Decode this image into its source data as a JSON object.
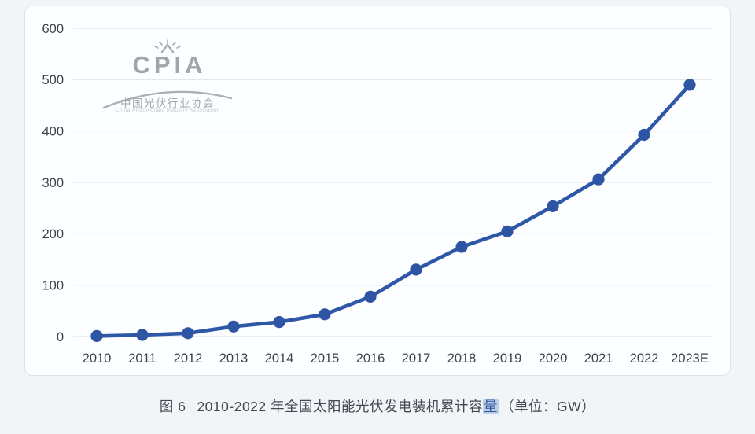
{
  "page": {
    "background": "#f1f5f7",
    "card_background": "#fdfeff"
  },
  "logo": {
    "acronym": "CPIA",
    "name_cn": "中国光伏行业协会",
    "name_en": "China Photovoltaic Industry Association",
    "color": "#9b9fa4"
  },
  "caption": {
    "figure_label": "图 6",
    "text_main": "2010-2022 年全国太阳能光伏发电装机累计容",
    "text_highlight": "量",
    "text_suffix": "（单位：GW）"
  },
  "chart_data": {
    "type": "line",
    "title": "2010-2022 年全国太阳能光伏发电装机累计容量",
    "unit": "GW",
    "categories": [
      "2010",
      "2011",
      "2012",
      "2013",
      "2014",
      "2015",
      "2016",
      "2017",
      "2018",
      "2019",
      "2020",
      "2021",
      "2022",
      "2023E"
    ],
    "values": [
      0.9,
      3.0,
      6.5,
      19.4,
      28.1,
      43.2,
      77.4,
      130.2,
      174.5,
      204.7,
      253.4,
      306.0,
      392.6,
      490.0
    ],
    "ylim": [
      0,
      600
    ],
    "yticks": [
      0,
      100,
      200,
      300,
      400,
      500,
      600
    ],
    "grid": true,
    "legend": "none",
    "line_color": "#2e57a8",
    "marker_color": "#2e55a4",
    "grid_color": "#e3e7ec",
    "tick_color": "#3c424c"
  }
}
